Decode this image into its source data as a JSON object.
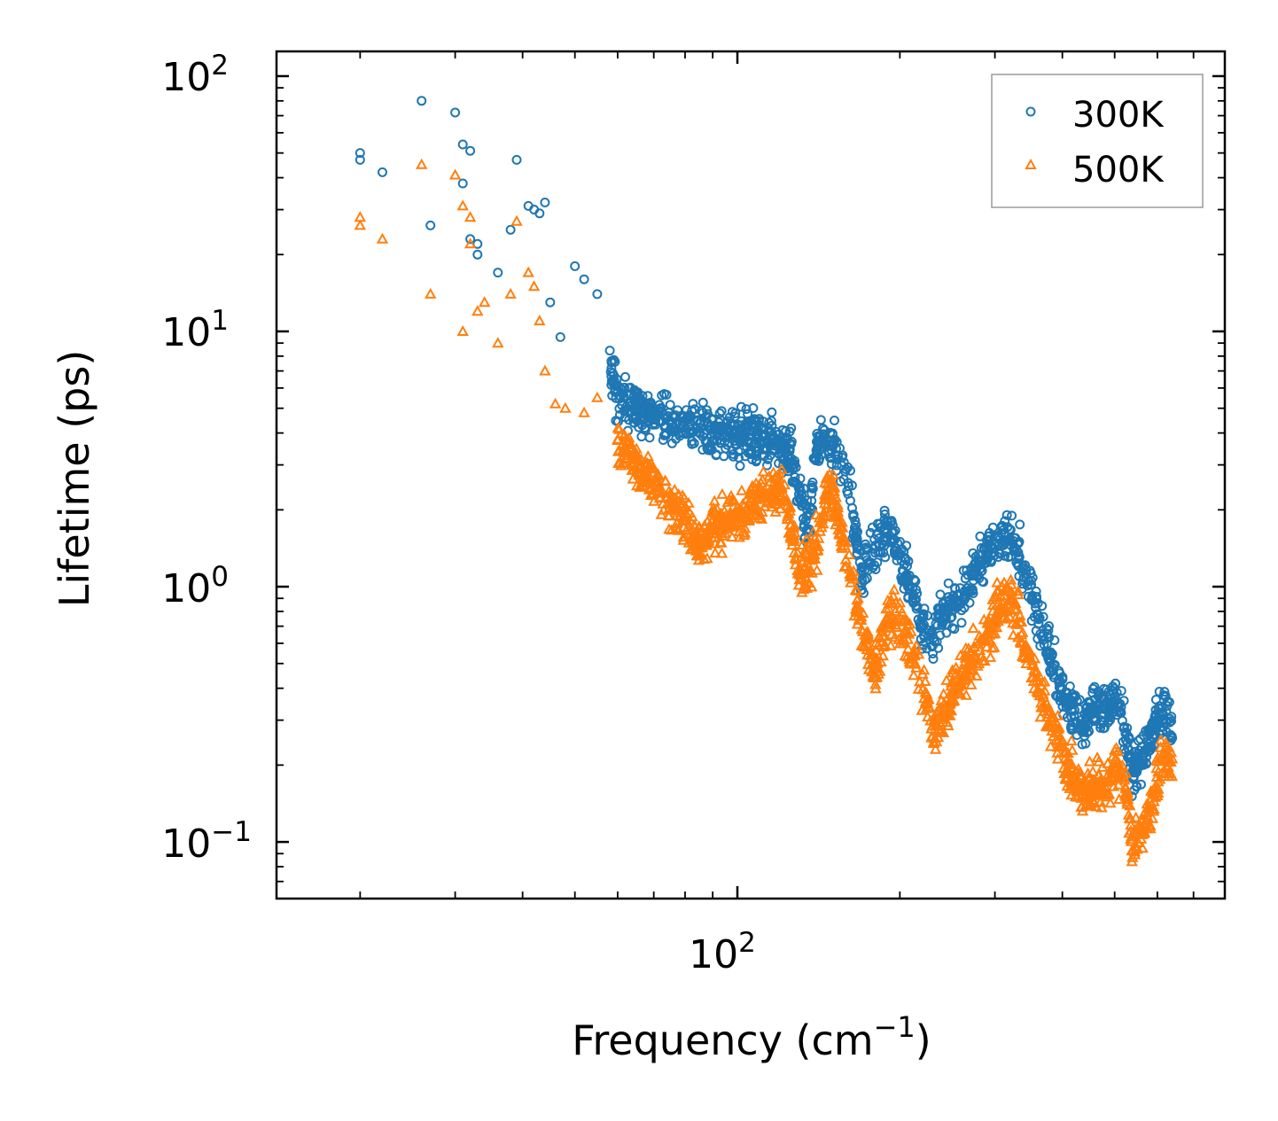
{
  "chart_data": {
    "type": "scatter",
    "title": "",
    "xlabel": "Frequency (cm",
    "xlabel_sup": "−1",
    "xlabel_end": ")",
    "ylabel": "Lifetime (ps)",
    "xscale": "log",
    "yscale": "log",
    "xlim": [
      14,
      800
    ],
    "ylim": [
      0.06,
      125
    ],
    "x_ticks": [
      {
        "value": 100,
        "base": "10",
        "exp": "2"
      }
    ],
    "y_ticks": [
      {
        "value": 0.1,
        "base": "10",
        "exp": "−1"
      },
      {
        "value": 1,
        "base": "10",
        "exp": "0"
      },
      {
        "value": 10,
        "base": "10",
        "exp": "1"
      },
      {
        "value": 100,
        "base": "10",
        "exp": "2"
      }
    ],
    "legend": {
      "position": "top-right"
    },
    "series": [
      {
        "name": "300K",
        "marker": "circle",
        "color": "#1f77b4",
        "anchors": [
          [
            20,
            50
          ],
          [
            20,
            47
          ],
          [
            22,
            42
          ],
          [
            26,
            80
          ],
          [
            27,
            26
          ],
          [
            30,
            72
          ],
          [
            31,
            54
          ],
          [
            31,
            38
          ],
          [
            32,
            51
          ],
          [
            32,
            23
          ],
          [
            33,
            20
          ],
          [
            33,
            22
          ],
          [
            36,
            17
          ],
          [
            38,
            25
          ],
          [
            39,
            47
          ],
          [
            41,
            31
          ],
          [
            42,
            30
          ],
          [
            43,
            29
          ],
          [
            44,
            32
          ],
          [
            45,
            13
          ],
          [
            47,
            9.5
          ],
          [
            50,
            18
          ],
          [
            52,
            16
          ],
          [
            55,
            14
          ],
          [
            58,
            8
          ],
          [
            60,
            5.2
          ],
          [
            65,
            5
          ],
          [
            70,
            4.7
          ],
          [
            80,
            4.3
          ],
          [
            90,
            3.9
          ],
          [
            100,
            3.9
          ],
          [
            110,
            4.0
          ],
          [
            118,
            3.4
          ],
          [
            125,
            3.5
          ],
          [
            130,
            2.4
          ],
          [
            135,
            1.6
          ],
          [
            140,
            3.5
          ],
          [
            145,
            4.0
          ],
          [
            150,
            3.6
          ],
          [
            160,
            2.6
          ],
          [
            170,
            1.1
          ],
          [
            180,
            1.4
          ],
          [
            190,
            1.75
          ],
          [
            200,
            1.3
          ],
          [
            210,
            1.0
          ],
          [
            220,
            0.7
          ],
          [
            230,
            0.6
          ],
          [
            240,
            0.8
          ],
          [
            260,
            0.9
          ],
          [
            280,
            1.2
          ],
          [
            300,
            1.5
          ],
          [
            320,
            1.6
          ],
          [
            340,
            1.2
          ],
          [
            360,
            0.8
          ],
          [
            380,
            0.55
          ],
          [
            400,
            0.38
          ],
          [
            420,
            0.32
          ],
          [
            440,
            0.3
          ],
          [
            460,
            0.35
          ],
          [
            480,
            0.33
          ],
          [
            500,
            0.38
          ],
          [
            520,
            0.3
          ],
          [
            540,
            0.18
          ],
          [
            560,
            0.22
          ],
          [
            580,
            0.25
          ],
          [
            600,
            0.3
          ],
          [
            620,
            0.32
          ],
          [
            640,
            0.28
          ]
        ],
        "count": 1400
      },
      {
        "name": "500K",
        "marker": "triangle",
        "color": "#ff7f0e",
        "anchors": [
          [
            20,
            28
          ],
          [
            20,
            26
          ],
          [
            22,
            23
          ],
          [
            26,
            45
          ],
          [
            27,
            14
          ],
          [
            30,
            41
          ],
          [
            31,
            31
          ],
          [
            31,
            10
          ],
          [
            32,
            22
          ],
          [
            32,
            28
          ],
          [
            33,
            12
          ],
          [
            34,
            13
          ],
          [
            36,
            9
          ],
          [
            38,
            14
          ],
          [
            39,
            27
          ],
          [
            41,
            17
          ],
          [
            42,
            15
          ],
          [
            43,
            11
          ],
          [
            44,
            7
          ],
          [
            46,
            5.2
          ],
          [
            48,
            5
          ],
          [
            52,
            4.8
          ],
          [
            55,
            5.5
          ],
          [
            60,
            3.8
          ],
          [
            65,
            3
          ],
          [
            70,
            2.5
          ],
          [
            80,
            1.8
          ],
          [
            85,
            1.4
          ],
          [
            90,
            1.7
          ],
          [
            100,
            1.9
          ],
          [
            110,
            2.2
          ],
          [
            120,
            2.4
          ],
          [
            125,
            1.9
          ],
          [
            130,
            1.1
          ],
          [
            140,
            1.4
          ],
          [
            145,
            2.2
          ],
          [
            150,
            2.4
          ],
          [
            160,
            1.3
          ],
          [
            170,
            0.7
          ],
          [
            180,
            0.45
          ],
          [
            190,
            0.75
          ],
          [
            200,
            0.7
          ],
          [
            210,
            0.6
          ],
          [
            220,
            0.4
          ],
          [
            230,
            0.28
          ],
          [
            240,
            0.32
          ],
          [
            260,
            0.45
          ],
          [
            280,
            0.55
          ],
          [
            300,
            0.75
          ],
          [
            320,
            0.9
          ],
          [
            340,
            0.6
          ],
          [
            360,
            0.4
          ],
          [
            380,
            0.3
          ],
          [
            400,
            0.22
          ],
          [
            420,
            0.18
          ],
          [
            440,
            0.15
          ],
          [
            460,
            0.17
          ],
          [
            480,
            0.16
          ],
          [
            500,
            0.2
          ],
          [
            520,
            0.18
          ],
          [
            540,
            0.1
          ],
          [
            560,
            0.11
          ],
          [
            580,
            0.13
          ],
          [
            600,
            0.18
          ],
          [
            620,
            0.22
          ],
          [
            640,
            0.2
          ]
        ],
        "count": 1400
      }
    ]
  }
}
